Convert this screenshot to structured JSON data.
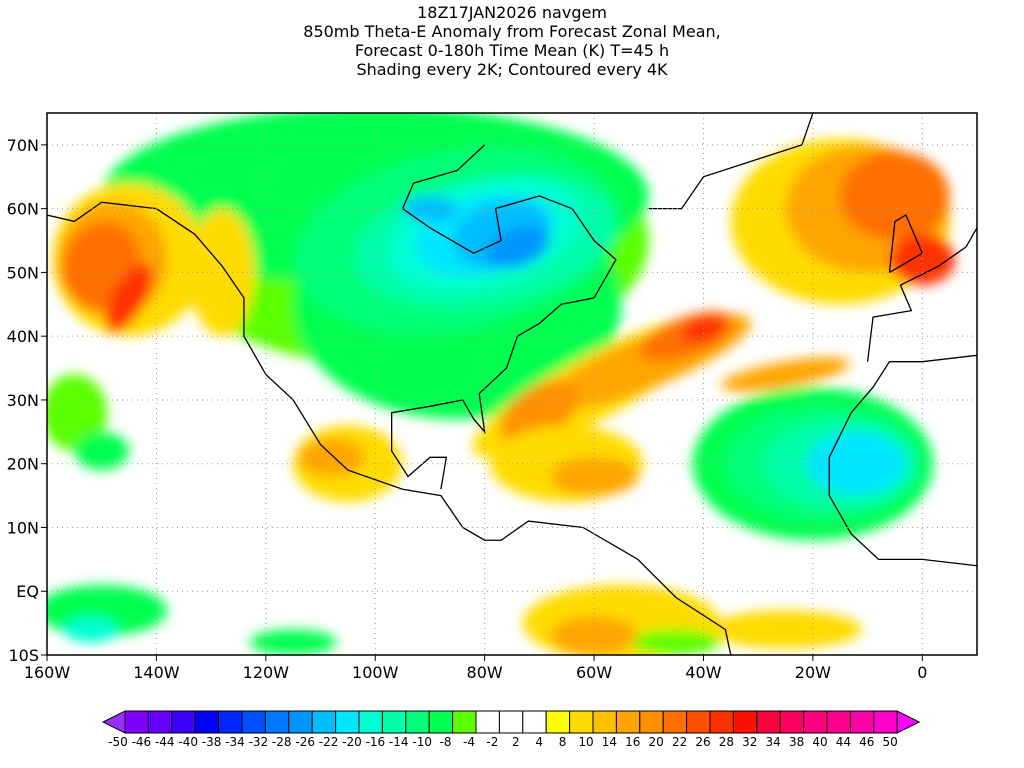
{
  "chart_data": {
    "type": "heatmap",
    "title": [
      "18Z17JAN2026 navgem",
      "850mb Theta-E Anomaly from Forecast Zonal Mean,",
      "Forecast 0-180h Time Mean (K) T=45 h",
      "Shading every 2K; Contoured every 4K"
    ],
    "xlabel": "",
    "ylabel": "",
    "xlim": [
      -160,
      10
    ],
    "ylim": [
      -10,
      75
    ],
    "x_ticks": [
      {
        "v": -160,
        "label": "160W"
      },
      {
        "v": -140,
        "label": "140W"
      },
      {
        "v": -120,
        "label": "120W"
      },
      {
        "v": -100,
        "label": "100W"
      },
      {
        "v": -80,
        "label": "80W"
      },
      {
        "v": -60,
        "label": "60W"
      },
      {
        "v": -40,
        "label": "40W"
      },
      {
        "v": -20,
        "label": "20W"
      },
      {
        "v": 0,
        "label": "0"
      }
    ],
    "y_ticks": [
      {
        "v": -10,
        "label": "10S"
      },
      {
        "v": 0,
        "label": "EQ"
      },
      {
        "v": 10,
        "label": "10N"
      },
      {
        "v": 20,
        "label": "20N"
      },
      {
        "v": 30,
        "label": "30N"
      },
      {
        "v": 40,
        "label": "40N"
      },
      {
        "v": 50,
        "label": "50N"
      },
      {
        "v": 60,
        "label": "60N"
      },
      {
        "v": 70,
        "label": "70N"
      }
    ],
    "colorbar": {
      "labels": [
        "-50",
        "-46",
        "-44",
        "-40",
        "-38",
        "-34",
        "-32",
        "-28",
        "-26",
        "-22",
        "-20",
        "-16",
        "-14",
        "-10",
        "-8",
        "-4",
        "-2",
        "2",
        "4",
        "8",
        "10",
        "14",
        "16",
        "20",
        "22",
        "26",
        "28",
        "32",
        "34",
        "38",
        "40",
        "44",
        "46",
        "50"
      ],
      "colors": [
        "#8000ff",
        "#6400ff",
        "#3c00ff",
        "#0000ff",
        "#0028ff",
        "#0050ff",
        "#0078ff",
        "#0096ff",
        "#00beff",
        "#00e6ff",
        "#00ffd2",
        "#00ffaa",
        "#00ff78",
        "#00ff50",
        "#5aff00",
        "#ffffff",
        "#ffffff",
        "#ffffff",
        "#ffff00",
        "#ffdc00",
        "#ffc000",
        "#ffa500",
        "#ff9000",
        "#ff7000",
        "#ff5000",
        "#ff3000",
        "#ff1000",
        "#ff0040",
        "#ff0060",
        "#ff0080",
        "#ff0090",
        "#ff00a8",
        "#ff00c8"
      ],
      "low_extend_color": "#9a30ff",
      "high_extend_color": "#ff00ff"
    },
    "features": [
      {
        "name": "canada-cold-anomaly",
        "lon": -78,
        "lat": 55,
        "value": -30
      },
      {
        "name": "alaska-warm-anomaly",
        "lon": -150,
        "lat": 52,
        "value": 22
      },
      {
        "name": "atlantic-warm-band",
        "lon": -45,
        "lat": 38,
        "value": 22
      },
      {
        "name": "europe-warm-anomaly",
        "lon": -5,
        "lat": 58,
        "value": 20
      },
      {
        "name": "east-atlantic-cold-anomaly",
        "lon": -18,
        "lat": 20,
        "value": -26
      }
    ]
  }
}
